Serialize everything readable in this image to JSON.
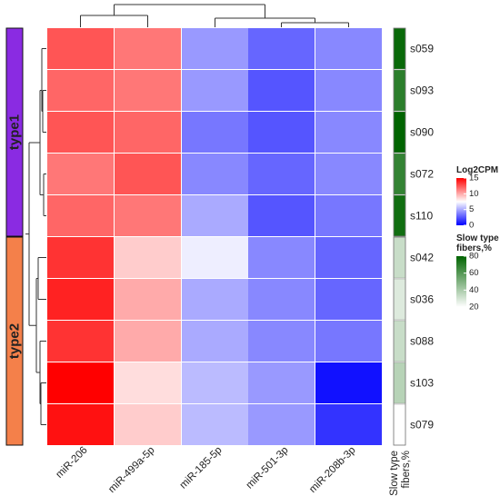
{
  "chart_data": {
    "type": "heatmap",
    "columns": [
      "miR-206",
      "miR-499a-5p",
      "miR-185-5p",
      "miR-501-3p",
      "miR-208b-3p"
    ],
    "column_order_note": "",
    "groups": [
      {
        "name": "type1",
        "color": "#8a2be2",
        "rows": [
          {
            "label": "s059",
            "values": [
              12.5,
              11.5,
              4.5,
              3.0,
              4.0
            ],
            "slow_fibers": 78
          },
          {
            "label": "s093",
            "values": [
              12.0,
              11.5,
              4.5,
              2.5,
              4.0
            ],
            "slow_fibers": 70
          },
          {
            "label": "s090",
            "values": [
              12.5,
              12.0,
              3.5,
              2.5,
              4.0
            ],
            "slow_fibers": 80
          },
          {
            "label": "s072",
            "values": [
              11.5,
              12.5,
              4.0,
              3.0,
              4.0
            ],
            "slow_fibers": 68
          },
          {
            "label": "s110",
            "values": [
              12.0,
              11.5,
              5.0,
              2.5,
              3.5
            ],
            "slow_fibers": 76
          }
        ]
      },
      {
        "name": "type2",
        "color": "#f4804a",
        "rows": [
          {
            "label": "s042",
            "values": [
              13.5,
              9.0,
              7.0,
              4.0,
              3.0
            ],
            "slow_fibers": 33
          },
          {
            "label": "s036",
            "values": [
              14.0,
              10.0,
              5.0,
              4.0,
              3.0
            ],
            "slow_fibers": 28
          },
          {
            "label": "s088",
            "values": [
              13.5,
              10.0,
              5.0,
              4.0,
              3.5
            ],
            "slow_fibers": 33
          },
          {
            "label": "s103",
            "values": [
              15.0,
              8.5,
              5.5,
              4.5,
              0.5
            ],
            "slow_fibers": 37
          },
          {
            "label": "s079",
            "values": [
              14.5,
              9.0,
              5.5,
              4.5,
              1.5
            ],
            "slow_fibers": 20
          }
        ]
      }
    ],
    "annotation_label": "Slow type fibers,%",
    "value_legend": {
      "title": "Log2CPM",
      "ticks": [
        15,
        10,
        5,
        0
      ],
      "range": [
        0,
        15
      ],
      "colors": {
        "low": "#0000ff",
        "mid": "#ffffff",
        "high": "#ff0000"
      },
      "mid_value": 7.5
    },
    "annotation_legend": {
      "title_line1": "Slow type",
      "title_line2": "fibers,%",
      "ticks": [
        80,
        60,
        40,
        20
      ],
      "range": [
        20,
        80
      ],
      "colors": {
        "low": "#ffffff",
        "high": "#006400"
      }
    },
    "dendrograms": {
      "columns": true,
      "rows": true
    }
  }
}
